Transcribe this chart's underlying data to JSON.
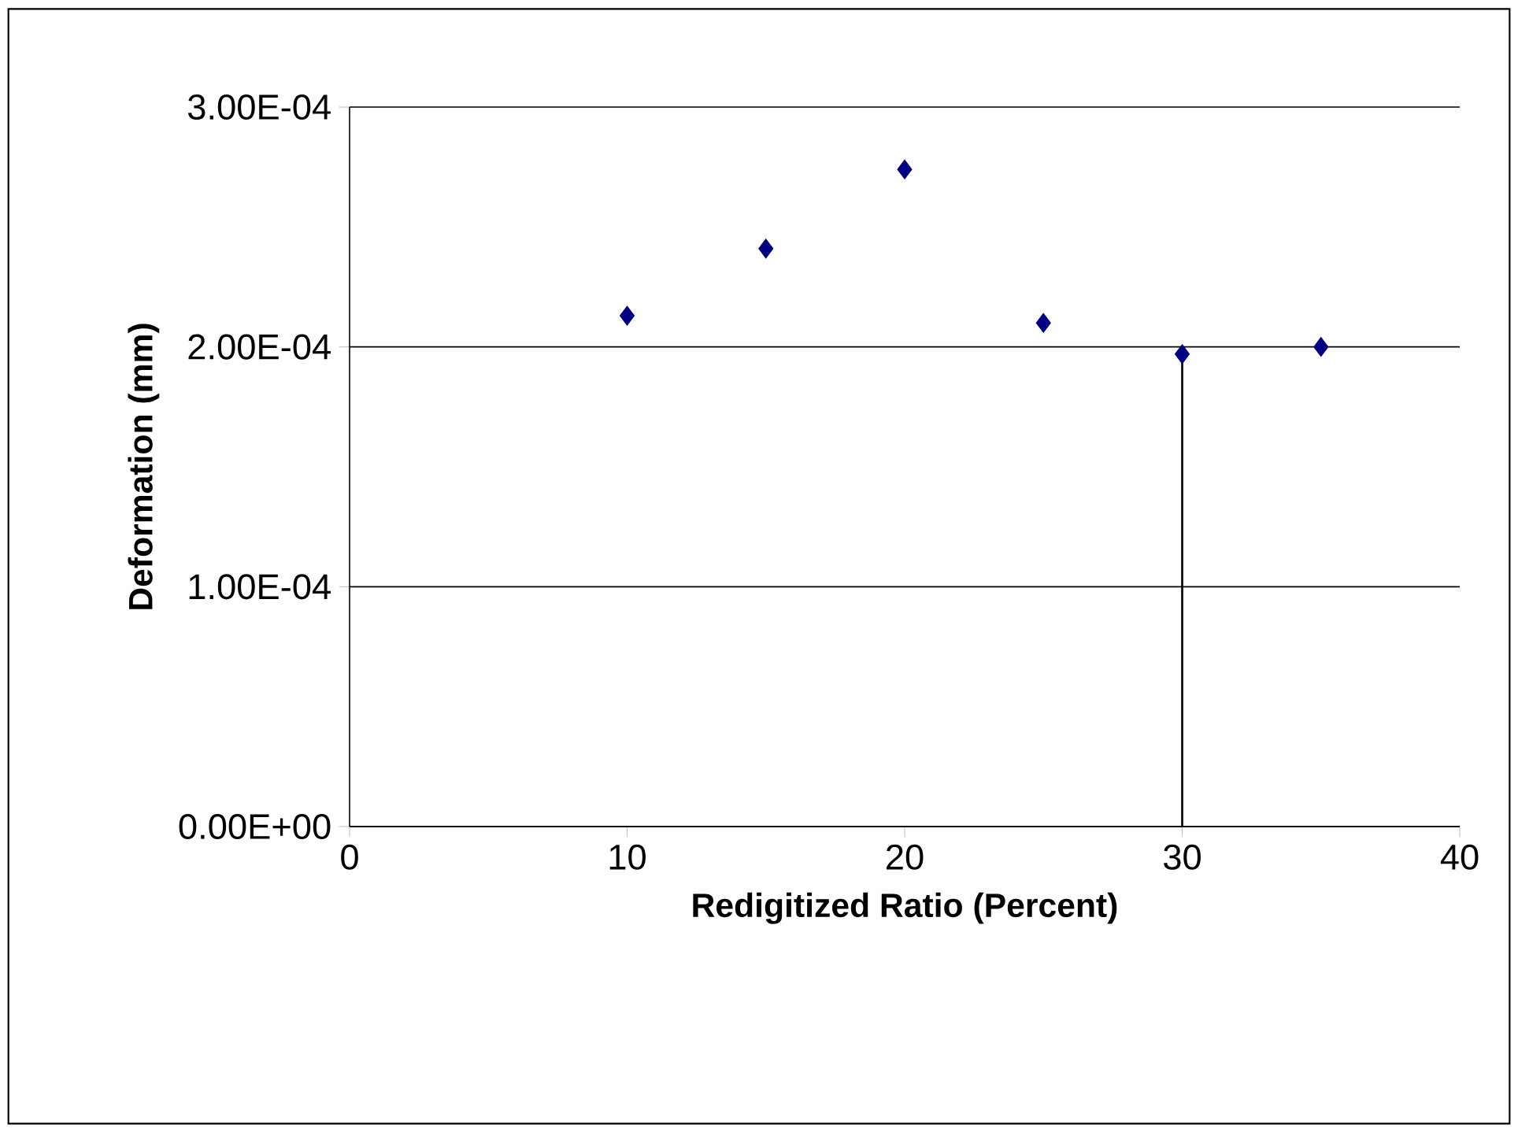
{
  "chart_data": {
    "type": "scatter",
    "xlabel": "Redigitized Ratio (Percent)",
    "ylabel": "Deformation (mm)",
    "xlim": [
      0,
      40
    ],
    "xticks": [
      0,
      10,
      20,
      30,
      40
    ],
    "ylim": [
      0,
      0.0003
    ],
    "yticks": [
      {
        "value": 0,
        "label": "0.00E+00"
      },
      {
        "value": 0.0001,
        "label": "1.00E-04"
      },
      {
        "value": 0.0002,
        "label": "2.00E-04"
      },
      {
        "value": 0.0003,
        "label": "3.00E-04"
      }
    ],
    "grid": "y",
    "marker": "diamond",
    "series": [
      {
        "color": "#000080",
        "x": [
          10,
          15,
          20,
          25,
          30,
          35
        ],
        "values": [
          0.000213,
          0.000241,
          0.000274,
          0.00021,
          0.000197,
          0.0002
        ]
      },
      {
        "type": "line",
        "marker": "none",
        "color": "#000000",
        "x": [
          30,
          30
        ],
        "values": [
          0,
          0.000197
        ]
      }
    ]
  }
}
